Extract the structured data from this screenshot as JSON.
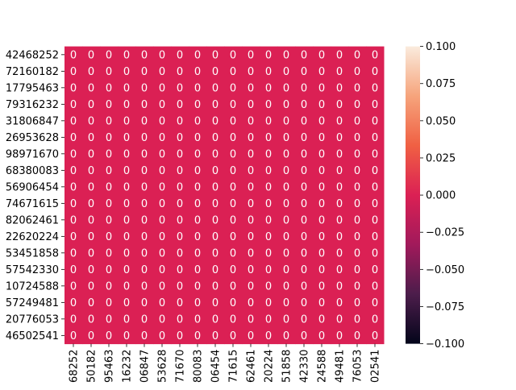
{
  "chart_data": {
    "type": "heatmap",
    "title": "",
    "xlabel": "",
    "ylabel": "",
    "row_labels": [
      "42468252",
      "72160182",
      "17795463",
      "79316232",
      "31806847",
      "26953628",
      "98971670",
      "68380083",
      "56906454",
      "74671615",
      "82062461",
      "22620224",
      "53451858",
      "57542330",
      "10724588",
      "57249481",
      "20776053",
      "46502541"
    ],
    "column_labels": [
      "68252",
      "50182",
      "95463",
      "16232",
      "06847",
      "53628",
      "71670",
      "80083",
      "06454",
      "71615",
      "62461",
      "20224",
      "51858",
      "42330",
      "24588",
      "49481",
      "76053",
      "02541"
    ],
    "values": [
      [
        0,
        0,
        0,
        0,
        0,
        0,
        0,
        0,
        0,
        0,
        0,
        0,
        0,
        0,
        0,
        0,
        0,
        0
      ],
      [
        0,
        0,
        0,
        0,
        0,
        0,
        0,
        0,
        0,
        0,
        0,
        0,
        0,
        0,
        0,
        0,
        0,
        0
      ],
      [
        0,
        0,
        0,
        0,
        0,
        0,
        0,
        0,
        0,
        0,
        0,
        0,
        0,
        0,
        0,
        0,
        0,
        0
      ],
      [
        0,
        0,
        0,
        0,
        0,
        0,
        0,
        0,
        0,
        0,
        0,
        0,
        0,
        0,
        0,
        0,
        0,
        0
      ],
      [
        0,
        0,
        0,
        0,
        0,
        0,
        0,
        0,
        0,
        0,
        0,
        0,
        0,
        0,
        0,
        0,
        0,
        0
      ],
      [
        0,
        0,
        0,
        0,
        0,
        0,
        0,
        0,
        0,
        0,
        0,
        0,
        0,
        0,
        0,
        0,
        0,
        0
      ],
      [
        0,
        0,
        0,
        0,
        0,
        0,
        0,
        0,
        0,
        0,
        0,
        0,
        0,
        0,
        0,
        0,
        0,
        0
      ],
      [
        0,
        0,
        0,
        0,
        0,
        0,
        0,
        0,
        0,
        0,
        0,
        0,
        0,
        0,
        0,
        0,
        0,
        0
      ],
      [
        0,
        0,
        0,
        0,
        0,
        0,
        0,
        0,
        0,
        0,
        0,
        0,
        0,
        0,
        0,
        0,
        0,
        0
      ],
      [
        0,
        0,
        0,
        0,
        0,
        0,
        0,
        0,
        0,
        0,
        0,
        0,
        0,
        0,
        0,
        0,
        0,
        0
      ],
      [
        0,
        0,
        0,
        0,
        0,
        0,
        0,
        0,
        0,
        0,
        0,
        0,
        0,
        0,
        0,
        0,
        0,
        0
      ],
      [
        0,
        0,
        0,
        0,
        0,
        0,
        0,
        0,
        0,
        0,
        0,
        0,
        0,
        0,
        0,
        0,
        0,
        0
      ],
      [
        0,
        0,
        0,
        0,
        0,
        0,
        0,
        0,
        0,
        0,
        0,
        0,
        0,
        0,
        0,
        0,
        0,
        0
      ],
      [
        0,
        0,
        0,
        0,
        0,
        0,
        0,
        0,
        0,
        0,
        0,
        0,
        0,
        0,
        0,
        0,
        0,
        0
      ],
      [
        0,
        0,
        0,
        0,
        0,
        0,
        0,
        0,
        0,
        0,
        0,
        0,
        0,
        0,
        0,
        0,
        0,
        0
      ],
      [
        0,
        0,
        0,
        0,
        0,
        0,
        0,
        0,
        0,
        0,
        0,
        0,
        0,
        0,
        0,
        0,
        0,
        0
      ],
      [
        0,
        0,
        0,
        0,
        0,
        0,
        0,
        0,
        0,
        0,
        0,
        0,
        0,
        0,
        0,
        0,
        0,
        0
      ],
      [
        0,
        0,
        0,
        0,
        0,
        0,
        0,
        0,
        0,
        0,
        0,
        0,
        0,
        0,
        0,
        0,
        0,
        0
      ]
    ],
    "annotations": true,
    "cell_color": "#db2054",
    "annotation_color": "#ffffff",
    "colorbar": {
      "min": -0.1,
      "max": 0.1,
      "ticks": [
        0.1,
        0.075,
        0.05,
        0.025,
        0.0,
        -0.025,
        -0.05,
        -0.075,
        -0.1
      ],
      "tick_labels": [
        "0.100",
        "0.075",
        "0.050",
        "0.025",
        "0.000",
        "−0.025",
        "−0.050",
        "−0.075",
        "−0.100"
      ],
      "colormap": "rocket",
      "color_stops": [
        "#03051a",
        "#4c1d4b",
        "#a11a5b",
        "#db2054",
        "#f06043",
        "#f6a47c",
        "#faebdd"
      ]
    },
    "grid": false,
    "legend": "colorbar-right"
  }
}
